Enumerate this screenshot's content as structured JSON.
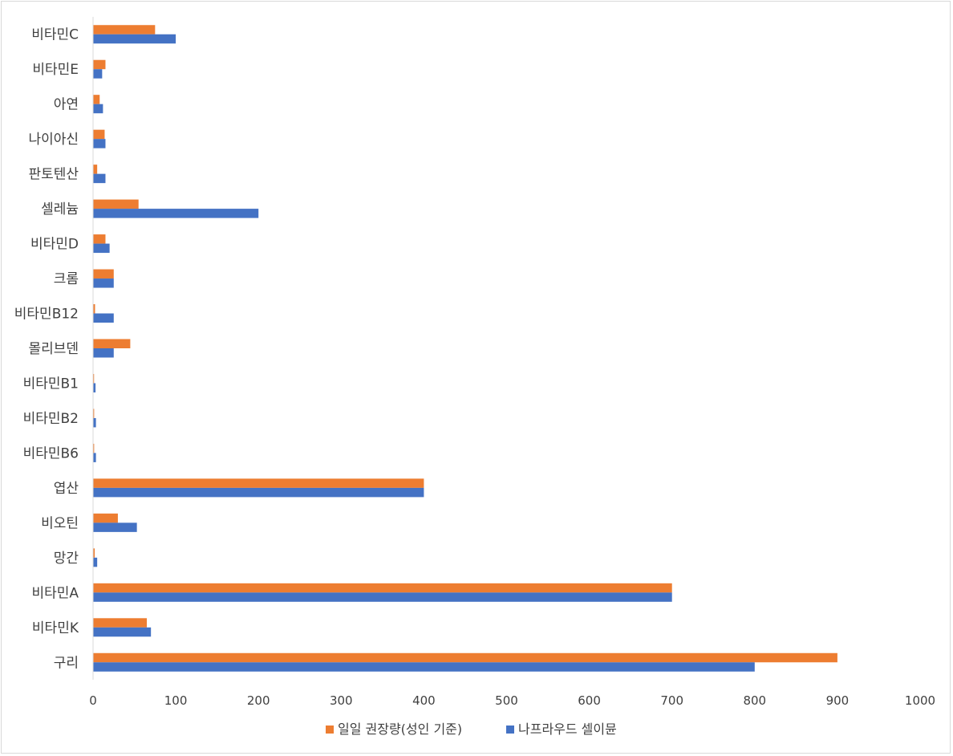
{
  "chart_data": {
    "type": "bar",
    "orientation": "horizontal",
    "categories": [
      "비타민C",
      "비타민E",
      "아연",
      "나이아신",
      "판토텐산",
      "셀레늄",
      "비타민D",
      "크롬",
      "비타민B12",
      "몰리브덴",
      "비타민B1",
      "비타민B2",
      "비타민B6",
      "엽산",
      "비오틴",
      "망간",
      "비타민A",
      "비타민K",
      "구리"
    ],
    "series": [
      {
        "name": "일일 권장량(성인 기준)",
        "color": "#ED7D31",
        "values": [
          75,
          15,
          8,
          14,
          5,
          55,
          15,
          25,
          2.4,
          45,
          1.2,
          1.3,
          1.3,
          400,
          30,
          2,
          700,
          65,
          900
        ]
      },
      {
        "name": "나프라우드 셀이뮨",
        "color": "#4472C4",
        "values": [
          100,
          11,
          12,
          15,
          15,
          200,
          20,
          25,
          25,
          25,
          3,
          3.5,
          3.5,
          400,
          53,
          5,
          700,
          70,
          800
        ]
      }
    ],
    "xlim": [
      0,
      1000
    ],
    "x_ticks": [
      "0",
      "100",
      "200",
      "300",
      "400",
      "500",
      "600",
      "700",
      "800",
      "900",
      "1000"
    ],
    "grid": false,
    "legend_position": "bottom",
    "title": "",
    "xlabel": "",
    "ylabel": ""
  }
}
